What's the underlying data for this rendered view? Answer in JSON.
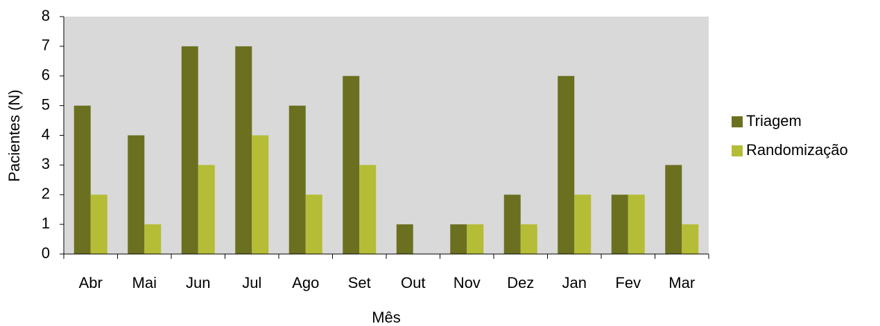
{
  "chart_data": {
    "type": "bar",
    "categories": [
      "Abr",
      "Mai",
      "Jun",
      "Jul",
      "Ago",
      "Set",
      "Out",
      "Nov",
      "Dez",
      "Jan",
      "Fev",
      "Mar"
    ],
    "series": [
      {
        "name": "Triagem",
        "color": "#6b7020",
        "values": [
          5,
          4,
          7,
          7,
          5,
          6,
          1,
          1,
          2,
          6,
          2,
          3
        ]
      },
      {
        "name": "Randomização",
        "color": "#b4bd35",
        "values": [
          2,
          1,
          3,
          4,
          2,
          3,
          0,
          1,
          1,
          2,
          2,
          1
        ]
      }
    ],
    "xlabel": "Mês",
    "ylabel": "Pacientes (N)",
    "ylim": [
      0,
      8
    ],
    "yticks": [
      0,
      1,
      2,
      3,
      4,
      5,
      6,
      7,
      8
    ],
    "grid": false,
    "legend": "right",
    "plot_background": "#d9d9d9"
  }
}
